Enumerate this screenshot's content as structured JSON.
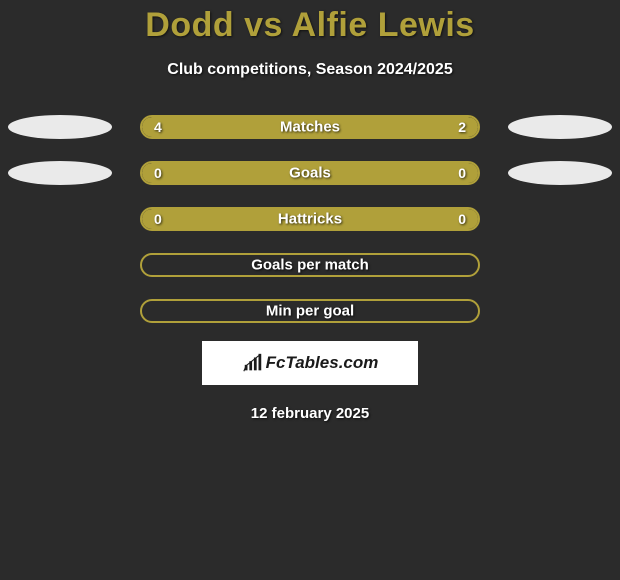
{
  "colors": {
    "background": "#2b2b2b",
    "accent": "#b0a03a",
    "bubble": "#eaeaea",
    "text": "#ffffff",
    "logo_bg": "#ffffff",
    "logo_text": "#1a1a1a"
  },
  "title": "Dodd vs Alfie Lewis",
  "subtitle": "Club competitions, Season 2024/2025",
  "rows": [
    {
      "label": "Matches",
      "left": "4",
      "right": "2",
      "left_pct": 66.7,
      "right_pct": 33.3,
      "show_left_bubble": true,
      "show_right_bubble": true
    },
    {
      "label": "Goals",
      "left": "0",
      "right": "0",
      "left_pct": 100,
      "right_pct": 0,
      "show_left_bubble": true,
      "show_right_bubble": true
    },
    {
      "label": "Hattricks",
      "left": "0",
      "right": "0",
      "left_pct": 100,
      "right_pct": 0,
      "show_left_bubble": false,
      "show_right_bubble": false
    },
    {
      "label": "Goals per match",
      "left": "",
      "right": "",
      "left_pct": 0,
      "right_pct": 0,
      "show_left_bubble": false,
      "show_right_bubble": false
    },
    {
      "label": "Min per goal",
      "left": "",
      "right": "",
      "left_pct": 0,
      "right_pct": 0,
      "show_left_bubble": false,
      "show_right_bubble": false
    }
  ],
  "logo": {
    "text": "FcTables.com"
  },
  "date": "12 february 2025"
}
